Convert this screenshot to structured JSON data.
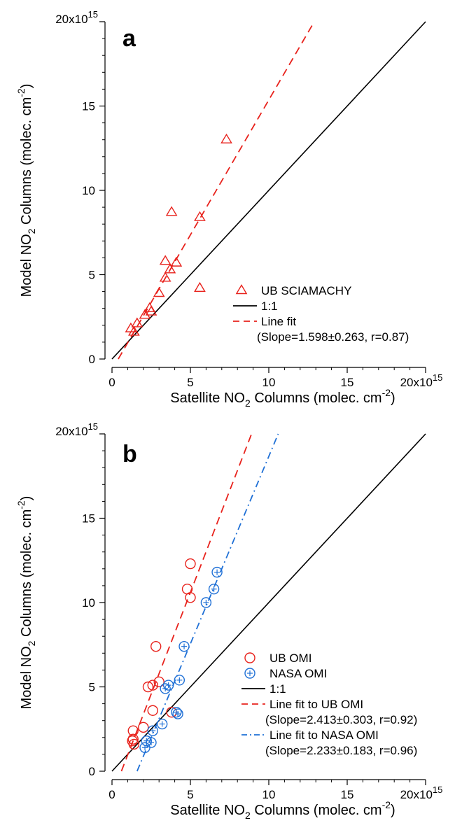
{
  "chart_data": [
    {
      "type": "scatter",
      "panel": "a",
      "xlabel": "Satellite NO2 Columns (molec. cm-2)",
      "ylabel": "Model NO2 Columns (molec. cm-2)",
      "axis_multiplier_label": "20x10",
      "axis_multiplier_exp": "15",
      "xlim": [
        0,
        20
      ],
      "ylim": [
        0,
        20
      ],
      "xticks": [
        0,
        5,
        10,
        15
      ],
      "yticks": [
        0,
        5,
        10,
        15
      ],
      "series": [
        {
          "name": "UB SCIAMACHY",
          "marker": "triangle",
          "color": "#e8221c",
          "x": [
            1.2,
            1.4,
            1.6,
            2.1,
            2.4,
            2.5,
            3.0,
            3.4,
            3.4,
            3.7,
            3.8,
            4.1,
            5.6,
            5.6,
            7.3
          ],
          "y": [
            1.8,
            1.6,
            2.1,
            2.6,
            3.0,
            2.8,
            3.9,
            4.8,
            5.8,
            5.3,
            8.7,
            5.7,
            8.4,
            4.2,
            13.0
          ]
        }
      ],
      "lines": [
        {
          "name": "1:1",
          "style": "solid",
          "color": "#000000",
          "x": [
            0,
            20
          ],
          "y": [
            0,
            20
          ]
        },
        {
          "name": "Line fit",
          "note": "(Slope=1.598±0.263, r=0.87)",
          "style": "dashed",
          "color": "#e8221c",
          "x": [
            0.4,
            12.9
          ],
          "y": [
            0,
            20
          ]
        }
      ],
      "legend_position": "bottom-right"
    },
    {
      "type": "scatter",
      "panel": "b",
      "xlabel": "Satellite NO2 Columns (molec. cm-2)",
      "ylabel": "Model NO2 Columns (molec. cm-2)",
      "axis_multiplier_label": "20x10",
      "axis_multiplier_exp": "15",
      "xlim": [
        0,
        20
      ],
      "ylim": [
        0,
        20
      ],
      "xticks": [
        0,
        5,
        10,
        15
      ],
      "yticks": [
        0,
        5,
        10,
        15
      ],
      "series": [
        {
          "name": "UB OMI",
          "marker": "circle",
          "color": "#e8221c",
          "x": [
            1.3,
            1.35,
            1.4,
            1.35,
            2.0,
            2.3,
            2.6,
            2.6,
            2.8,
            3.0,
            3.8,
            4.8,
            5.0,
            5.0
          ],
          "y": [
            1.8,
            1.9,
            1.6,
            2.4,
            2.6,
            5.0,
            5.1,
            3.6,
            7.4,
            5.3,
            3.5,
            10.8,
            10.3,
            12.3
          ]
        },
        {
          "name": "NASA OMI",
          "marker": "circle-plus",
          "color": "#1f70d6",
          "x": [
            2.1,
            2.2,
            2.5,
            2.6,
            3.2,
            3.4,
            3.6,
            4.1,
            4.2,
            4.3,
            4.6,
            6.0,
            6.5,
            6.7
          ],
          "y": [
            1.4,
            1.8,
            1.7,
            2.4,
            2.8,
            4.9,
            5.1,
            3.5,
            3.4,
            5.4,
            7.4,
            10.0,
            10.8,
            11.8
          ]
        }
      ],
      "lines": [
        {
          "name": "1:1",
          "style": "solid",
          "color": "#000000",
          "x": [
            0,
            20
          ],
          "y": [
            0,
            20
          ]
        },
        {
          "name": "Line fit to UB OMI",
          "note": "(Slope=2.413±0.303, r=0.92)",
          "style": "dashed",
          "color": "#e8221c",
          "x": [
            0.6,
            8.9
          ],
          "y": [
            0,
            20
          ]
        },
        {
          "name": "Line fit to NASA OMI",
          "note": "(Slope=2.233±0.183, r=0.96)",
          "style": "dashdot",
          "color": "#1f70d6",
          "x": [
            1.6,
            10.6
          ],
          "y": [
            0,
            20
          ]
        }
      ],
      "legend_position": "bottom-right"
    }
  ]
}
